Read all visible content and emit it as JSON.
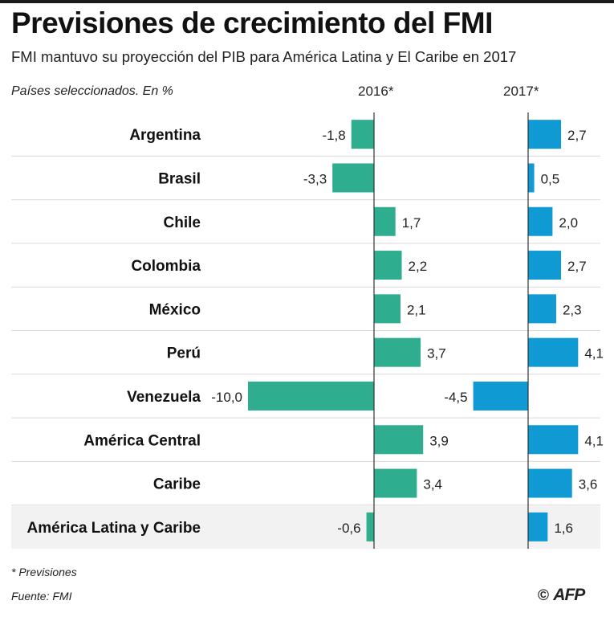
{
  "title": "Previsiones de crecimiento del FMI",
  "subtitle": "FMI mantuvo su proyección del PIB para América Latina y El Caribe en 2017",
  "units_label": "Países seleccionados. En %",
  "footnote": "* Previsiones",
  "source": "Fuente: FMI",
  "credit": {
    "symbol": "©",
    "agency": "AFP"
  },
  "colors": {
    "series_2016": "#2eae8f",
    "series_2017": "#0f9ad4",
    "row_highlight": "#f2f2f2",
    "separator": "#d9d9d9"
  },
  "chart_data": {
    "type": "bar",
    "orientation": "horizontal",
    "categories": [
      "Argentina",
      "Brasil",
      "Chile",
      "Colombia",
      "México",
      "Perú",
      "Venezuela",
      "América Central",
      "Caribe",
      "América Latina y Caribe"
    ],
    "series": [
      {
        "name": "2016*",
        "values": [
          -1.8,
          -3.3,
          1.7,
          2.2,
          2.1,
          3.7,
          -10.0,
          3.9,
          3.4,
          -0.6
        ],
        "labels": [
          "-1,8",
          "-3,3",
          "1,7",
          "2,2",
          "2,1",
          "3,7",
          "-10,0",
          "3,9",
          "3,4",
          "-0,6"
        ]
      },
      {
        "name": "2017*",
        "values": [
          2.7,
          0.5,
          2.0,
          2.7,
          2.3,
          4.1,
          -4.5,
          4.1,
          3.6,
          1.6
        ],
        "labels": [
          "2,7",
          "0,5",
          "2,0",
          "2,7",
          "2,3",
          "4,1",
          "-4,5",
          "4,1",
          "3,6",
          "1,6"
        ]
      }
    ],
    "unit": "%"
  }
}
